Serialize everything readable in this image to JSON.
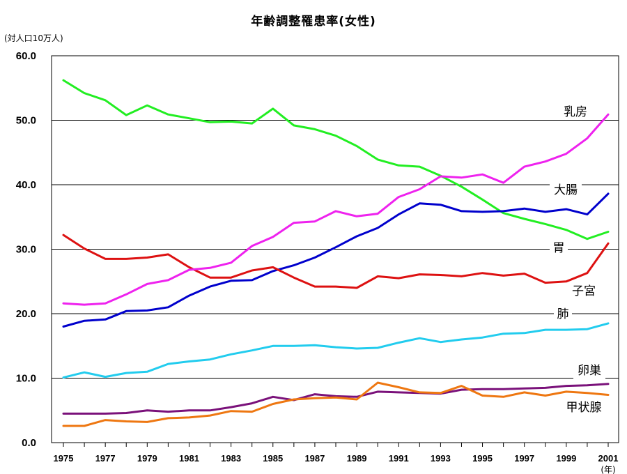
{
  "chart_data": {
    "type": "line",
    "title": "年齢調整罹患率(女性)",
    "unit_label": "(対人口10万人)",
    "x_unit": "(年)",
    "ylim": [
      0,
      60
    ],
    "y_ticks": [
      "0.0",
      "10.0",
      "20.0",
      "30.0",
      "40.0",
      "50.0",
      "60.0"
    ],
    "x": [
      1975,
      1976,
      1977,
      1978,
      1979,
      1980,
      1981,
      1982,
      1983,
      1984,
      1985,
      1986,
      1987,
      1988,
      1989,
      1990,
      1991,
      1992,
      1993,
      1994,
      1995,
      1996,
      1997,
      1998,
      1999,
      2000,
      2001
    ],
    "x_tick_labels": [
      "1975",
      "1977",
      "1979",
      "1981",
      "1983",
      "1985",
      "1987",
      "1989",
      "1991",
      "1993",
      "1995",
      "1997",
      "1999",
      "2001"
    ],
    "grid": "horizontal",
    "series": [
      {
        "name": "乳房",
        "color": "#22ee22",
        "values": [
          56.2,
          54.2,
          53.1,
          50.8,
          52.3,
          50.9,
          50.3,
          49.7,
          49.8,
          49.5,
          51.8,
          49.2,
          48.6,
          47.6,
          46.0,
          43.9,
          43.0,
          42.8,
          41.4,
          39.7,
          37.7,
          35.6,
          34.7,
          33.9,
          33.0,
          31.6,
          32.7
        ]
      },
      {
        "name": "大腸",
        "color": "#0000cc",
        "values": [
          18.0,
          18.9,
          19.1,
          20.4,
          20.5,
          21.0,
          22.8,
          24.2,
          25.1,
          25.2,
          26.6,
          27.5,
          28.7,
          30.3,
          32.0,
          33.3,
          35.4,
          37.1,
          36.9,
          35.9,
          35.8,
          35.9,
          36.3,
          35.8,
          36.2,
          35.4,
          38.6
        ]
      },
      {
        "name": "胃",
        "color": "#dd1111",
        "values": [
          32.2,
          30.1,
          28.5,
          28.5,
          28.7,
          29.2,
          27.2,
          25.6,
          25.6,
          26.7,
          27.2,
          25.6,
          24.2,
          24.2,
          24.0,
          25.8,
          25.5,
          26.1,
          26.0,
          25.8,
          26.3,
          25.9,
          26.2,
          24.8,
          25.0,
          26.3,
          30.9
        ]
      },
      {
        "name": "子宮",
        "color": "#ee22ee",
        "values": [
          21.6,
          21.4,
          21.6,
          23.0,
          24.6,
          25.2,
          26.8,
          27.1,
          27.9,
          30.5,
          31.9,
          34.1,
          34.3,
          35.9,
          35.1,
          35.5,
          38.1,
          39.3,
          41.3,
          41.1,
          41.6,
          40.3,
          42.8,
          43.6,
          44.8,
          47.2,
          50.9
        ]
      },
      {
        "name": "肺",
        "color": "#22ccee",
        "values": [
          10.1,
          10.9,
          10.2,
          10.8,
          11.0,
          12.2,
          12.6,
          12.9,
          13.7,
          14.3,
          15.0,
          15.0,
          15.1,
          14.8,
          14.6,
          14.7,
          15.5,
          16.2,
          15.6,
          16.0,
          16.3,
          16.9,
          17.0,
          17.5,
          17.5,
          17.6,
          18.5
        ]
      },
      {
        "name": "卵巣",
        "color": "#7a117a",
        "values": [
          4.5,
          4.5,
          4.5,
          4.6,
          5.0,
          4.8,
          5.0,
          5.0,
          5.5,
          6.1,
          7.1,
          6.6,
          7.5,
          7.2,
          7.1,
          7.9,
          7.8,
          7.7,
          7.6,
          8.2,
          8.3,
          8.3,
          8.4,
          8.5,
          8.8,
          8.9,
          9.1
        ]
      },
      {
        "name": "甲状腺",
        "color": "#ee7711",
        "values": [
          2.6,
          2.6,
          3.5,
          3.3,
          3.2,
          3.8,
          3.9,
          4.2,
          4.9,
          4.8,
          6.0,
          6.7,
          6.9,
          7.0,
          6.7,
          9.3,
          8.6,
          7.8,
          7.7,
          8.8,
          7.3,
          7.1,
          7.8,
          7.3,
          7.9,
          7.7,
          7.4
        ]
      }
    ],
    "annotations": [
      "乳房",
      "大腸",
      "胃",
      "子宮",
      "肺",
      "卵巣",
      "甲状腺"
    ]
  }
}
